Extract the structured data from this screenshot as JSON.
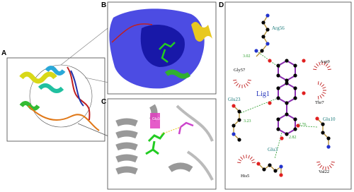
{
  "panels": {
    "a": {
      "label": "A"
    },
    "b": {
      "label": "B"
    },
    "c": {
      "label": "C",
      "residue": "Glu10"
    },
    "d": {
      "label": "D",
      "ligand": "Lig1",
      "residues": [
        "Arg56",
        "Asp9",
        "Gly57",
        "Glu23",
        "Thr7",
        "Glu10",
        "Glu3",
        "His5",
        "Val22"
      ],
      "distances": [
        "3.02",
        "3.23",
        "2.76",
        "2.82"
      ]
    }
  }
}
